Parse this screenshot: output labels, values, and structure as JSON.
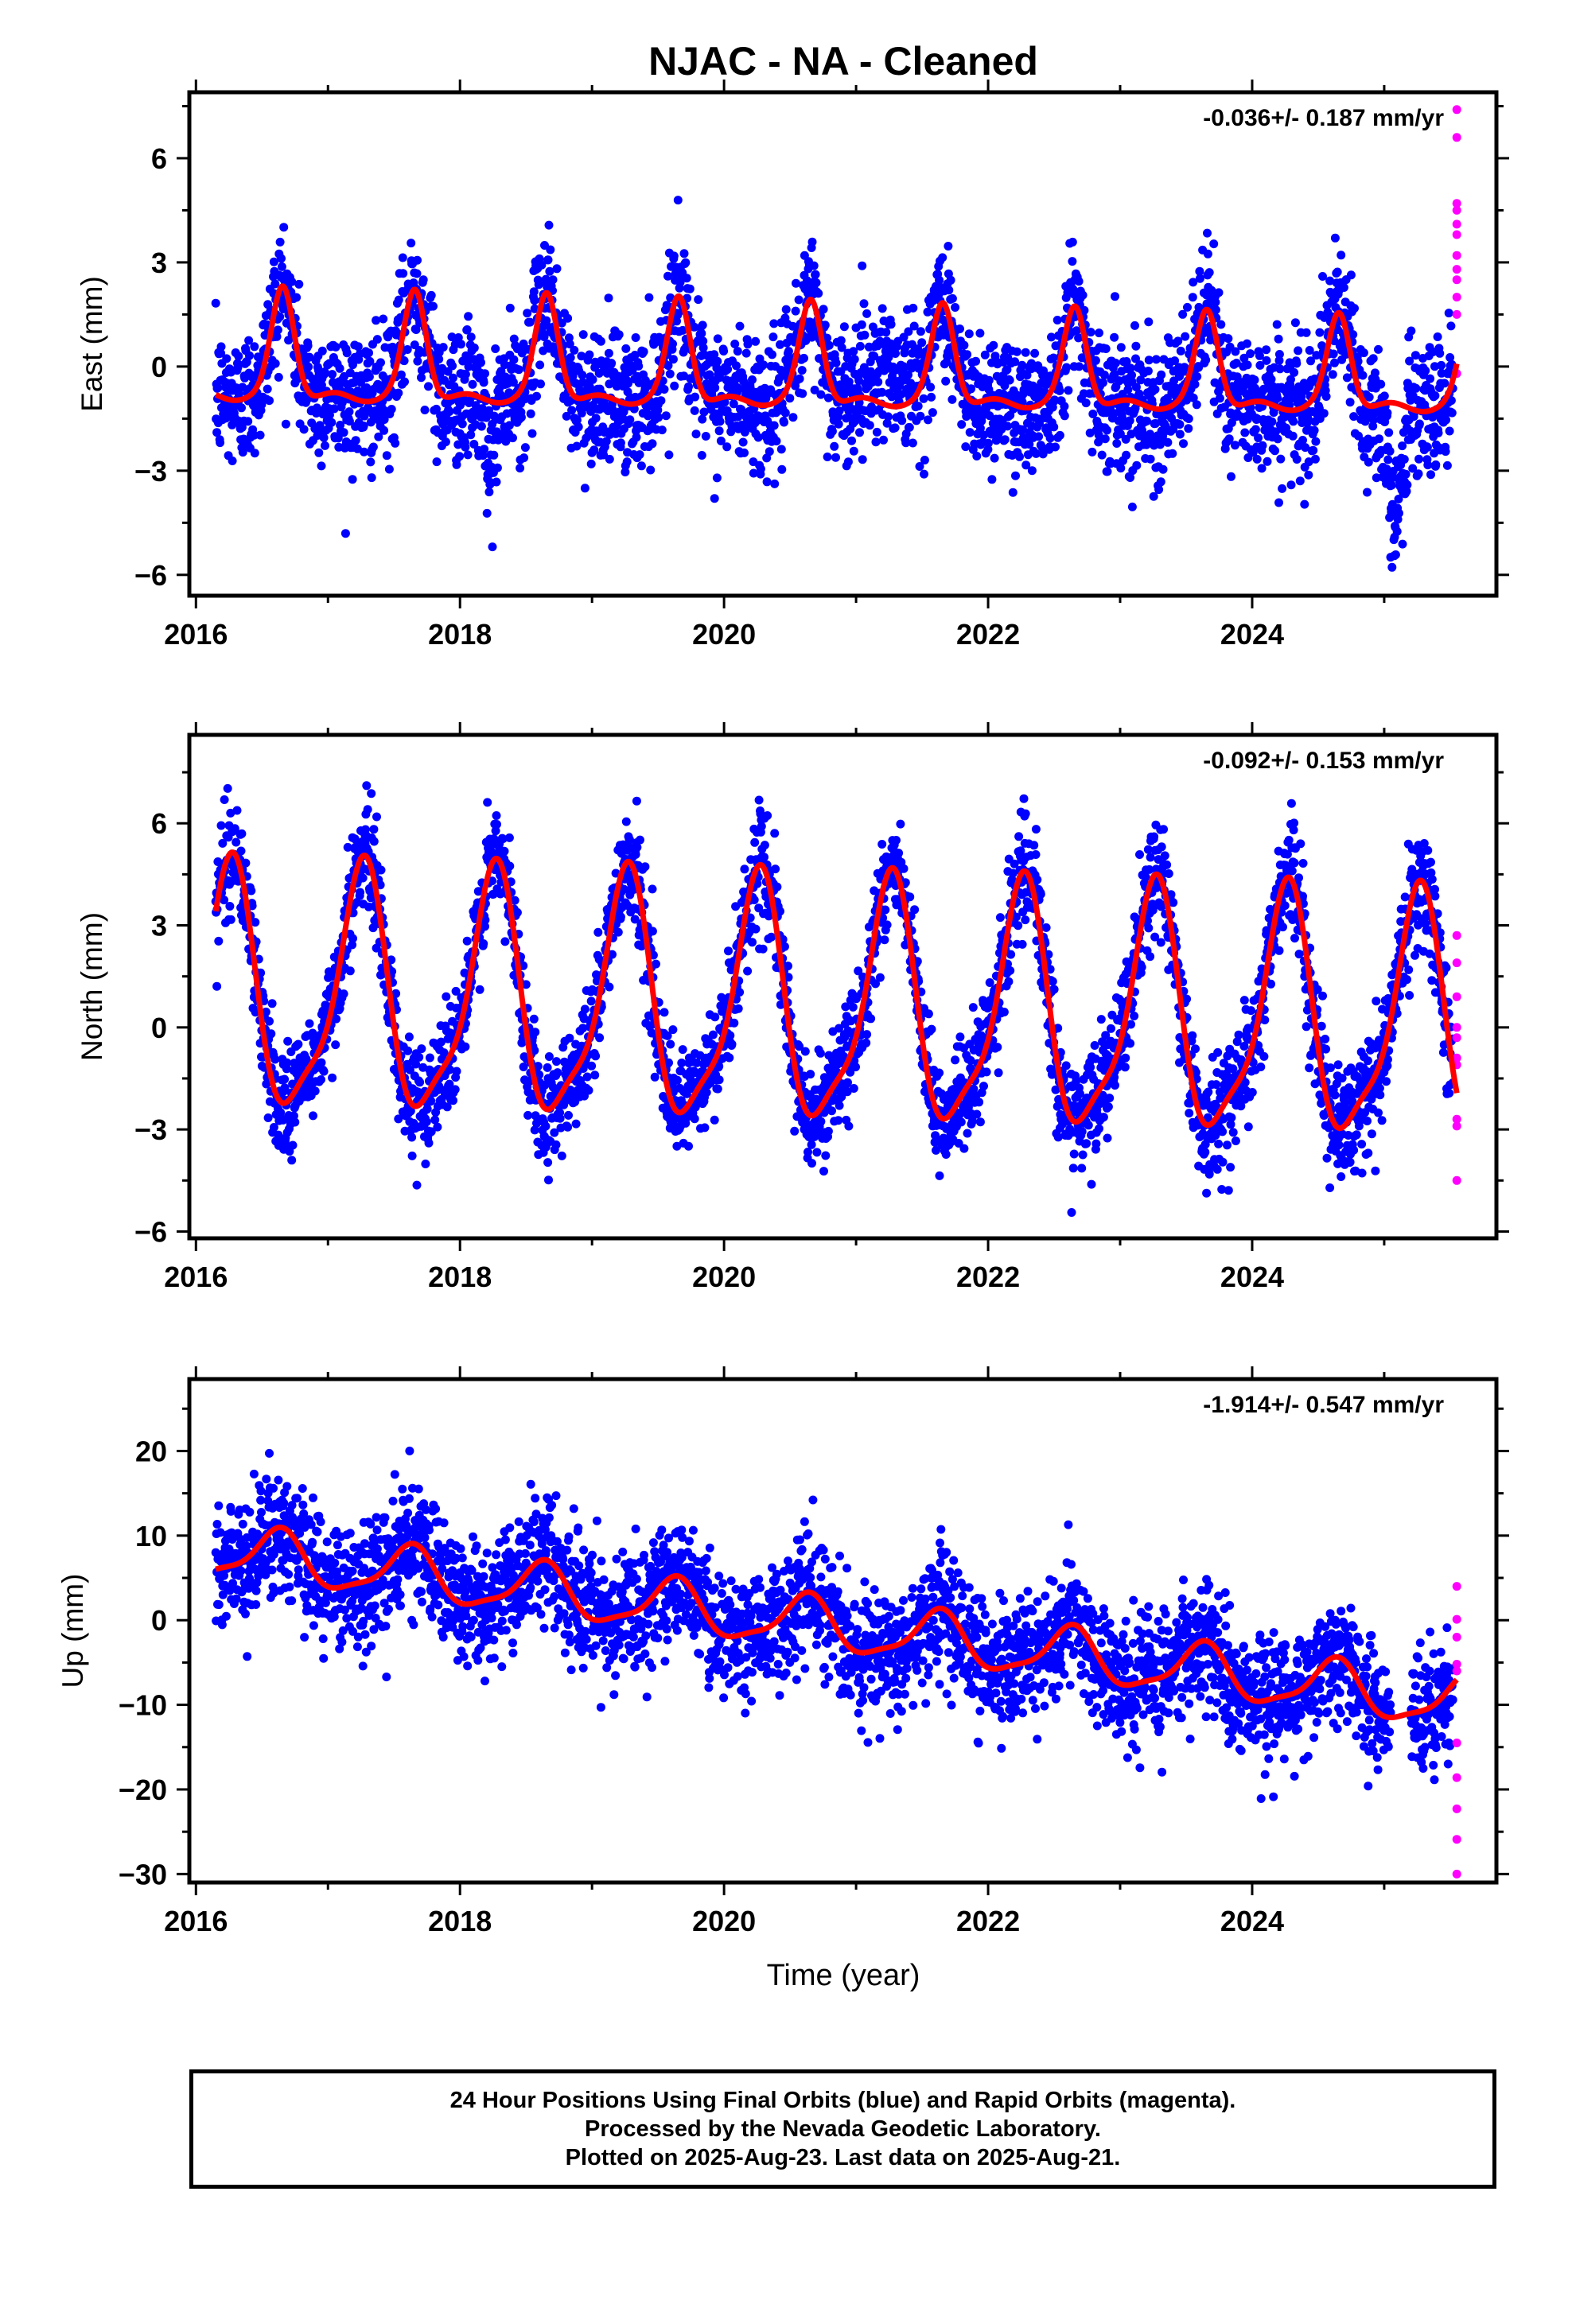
{
  "title": "NJAC  - NA - Cleaned",
  "xlabel": "Time (year)",
  "footer": {
    "line1": "24 Hour Positions Using Final Orbits (blue) and Rapid Orbits (magenta).",
    "line2": "Processed by the Nevada Geodetic Laboratory.",
    "line3": "Plotted on 2025-Aug-23. Last data on 2025-Aug-21."
  },
  "colors": {
    "final": "#0000ff",
    "rapid": "#ff00ff",
    "model": "#ff0000",
    "frame": "#000000"
  },
  "chart_data": [
    {
      "type": "scatter",
      "name": "east",
      "ylabel": "East (mm)",
      "rate_text": "-0.036+/- 0.187 mm/yr",
      "xlim": [
        2015.95,
        2025.85
      ],
      "ylim": [
        -6.6,
        7.9
      ],
      "xticks": [
        2016,
        2018,
        2020,
        2022,
        2024
      ],
      "yticks": [
        -6,
        -3,
        0,
        3,
        6
      ],
      "ytick_labels": [
        "−6",
        "−3",
        "0",
        "3",
        "6"
      ],
      "model": {
        "rate": -0.036,
        "offset": 0.75,
        "peak_amp": 3.2,
        "peak_center": 0.66,
        "peak_width": 0.085,
        "peak_amp_trend": -0.06,
        "wobble": 0.25
      },
      "noise": {
        "sigma": 0.95,
        "anomalies": [
          {
            "t0": 2018.15,
            "t1": 2018.3,
            "shift": -2.0
          },
          {
            "t0": 2024.95,
            "t1": 2025.2,
            "shift": -3.4
          },
          {
            "t0": 2020.9,
            "t1": 2021.55,
            "shift": 2.0
          }
        ]
      },
      "data_start": 2016.15,
      "data_end": 2025.52,
      "rapid": [
        7.4,
        6.6,
        4.7,
        4.5,
        4.1,
        3.8,
        3.2,
        2.8,
        2.5,
        2.0,
        1.5,
        -0.2
      ]
    },
    {
      "type": "scatter",
      "name": "north",
      "ylabel": "North (mm)",
      "rate_text": "-0.092+/- 0.153 mm/yr",
      "xlim": [
        2015.95,
        2025.85
      ],
      "ylim": [
        -6.2,
        8.6
      ],
      "xticks": [
        2016,
        2018,
        2020,
        2022,
        2024
      ],
      "yticks": [
        -6,
        -3,
        0,
        3,
        6
      ],
      "ytick_labels": [
        "−6",
        "−3",
        "0",
        "3",
        "6"
      ],
      "model": {
        "rate": -0.092,
        "amp1": 3.45,
        "phase": 0.25,
        "amp2": 0.9,
        "offset": 1.4
      },
      "noise": {
        "sigma": 0.8,
        "anomalies": []
      },
      "data_start": 2016.15,
      "data_end": 2025.52,
      "rapid": [
        2.7,
        1.9,
        0.9,
        0.0,
        -0.3,
        -0.9,
        -1.1,
        -2.7,
        -2.9,
        -4.5
      ]
    },
    {
      "type": "scatter",
      "name": "up",
      "ylabel": "Up (mm)",
      "rate_text": "-1.914+/- 0.547 mm/yr",
      "xlim": [
        2015.95,
        2025.85
      ],
      "ylim": [
        -31,
        28.5
      ],
      "xticks": [
        2016,
        2018,
        2020,
        2022,
        2024
      ],
      "yticks": [
        -30,
        -20,
        -10,
        0,
        10,
        20
      ],
      "ytick_labels": [
        "−30",
        "−20",
        "−10",
        "0",
        "10",
        "20"
      ],
      "model": {
        "rate": -1.914,
        "amp1": 3.0,
        "phase": 0.62,
        "amp2": 0.8,
        "offset": 8.2
      },
      "noise": {
        "sigma": 3.6,
        "anomalies": []
      },
      "data_start": 2016.15,
      "data_end": 2025.52,
      "rapid": [
        4.0,
        0.1,
        -2.0,
        -5.2,
        -6.0,
        -14.5,
        -18.6,
        -22.3,
        -25.9,
        -30.0
      ]
    }
  ]
}
